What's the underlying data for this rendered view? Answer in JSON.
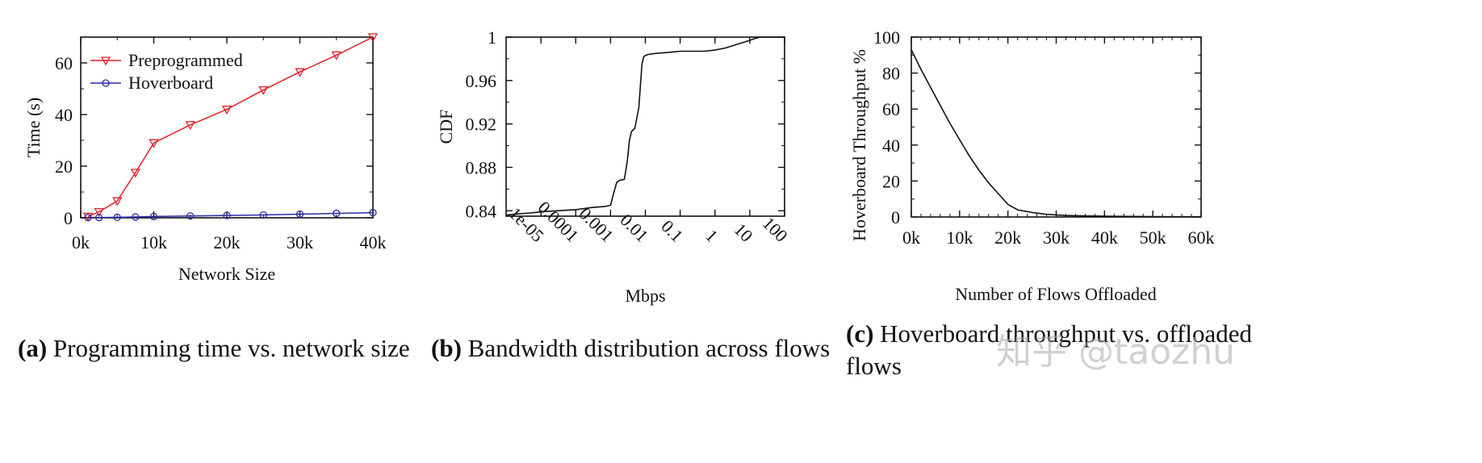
{
  "chart_data": [
    {
      "id": "a",
      "type": "line",
      "xlabel": "Network Size",
      "ylabel": "Time (s)",
      "xlim": [
        0,
        40000
      ],
      "ylim": [
        0,
        70
      ],
      "xticks": [
        0,
        10000,
        20000,
        30000,
        40000
      ],
      "xtick_labels": [
        "0k",
        "10k",
        "20k",
        "30k",
        "40k"
      ],
      "yticks": [
        0,
        20,
        40,
        60
      ],
      "ytick_labels": [
        "0",
        "20",
        "40",
        "60"
      ],
      "legend_position": "top-left",
      "series": [
        {
          "name": "Preprogrammed",
          "color": "#e0202a",
          "marker": "triangle-down",
          "x": [
            1000,
            2500,
            5000,
            7500,
            10000,
            15000,
            20000,
            25000,
            30000,
            35000,
            40000
          ],
          "y": [
            0.5,
            2.3,
            6.5,
            17.5,
            29,
            36,
            42,
            49.5,
            56.5,
            63,
            70
          ]
        },
        {
          "name": "Hoverboard",
          "color": "#2a2aa8",
          "marker": "circle",
          "x": [
            1000,
            2500,
            5000,
            7500,
            10000,
            15000,
            20000,
            25000,
            30000,
            35000,
            40000
          ],
          "y": [
            0.1,
            0.1,
            0.2,
            0.3,
            0.5,
            0.7,
            0.9,
            1.1,
            1.4,
            1.7,
            2.0
          ]
        }
      ]
    },
    {
      "id": "b",
      "type": "line",
      "xlabel": "Mbps",
      "ylabel": "CDF",
      "xscale": "log",
      "xlim": [
        1e-06,
        100
      ],
      "ylim": [
        0.835,
        1.0
      ],
      "xticks": [
        1e-05,
        0.0001,
        0.001,
        0.01,
        0.1,
        1,
        10,
        100
      ],
      "xtick_labels": [
        "1e-05",
        "0.0001",
        "0.001",
        "0.01",
        "0.1",
        "1",
        "10",
        "100"
      ],
      "yticks": [
        0.84,
        0.88,
        0.92,
        0.96,
        1.0
      ],
      "ytick_labels": [
        "0.84",
        "0.88",
        "0.92",
        "0.96",
        "1"
      ],
      "series": [
        {
          "color": "#111111",
          "x": [
            1e-06,
            2e-06,
            5e-06,
            1e-05,
            3e-05,
            0.0001,
            0.0003,
            0.0007,
            0.001,
            0.0012,
            0.0015,
            0.0018,
            0.0025,
            0.003,
            0.0035,
            0.004,
            0.005,
            0.0065,
            0.008,
            0.009,
            0.01,
            0.012,
            0.02,
            0.05,
            0.1,
            0.5,
            1,
            2,
            5,
            10,
            15,
            20,
            30,
            100
          ],
          "y": [
            0.836,
            0.837,
            0.838,
            0.839,
            0.84,
            0.841,
            0.843,
            0.844,
            0.845,
            0.855,
            0.866,
            0.868,
            0.869,
            0.885,
            0.905,
            0.913,
            0.916,
            0.935,
            0.975,
            0.982,
            0.983,
            0.984,
            0.985,
            0.986,
            0.987,
            0.987,
            0.988,
            0.99,
            0.994,
            0.997,
            0.999,
            1.0,
            1.0,
            1.0
          ]
        }
      ]
    },
    {
      "id": "c",
      "type": "line",
      "xlabel": "Number of Flows Offloaded",
      "ylabel": "Hoverboard Throughput %",
      "xlim": [
        0,
        60000
      ],
      "ylim": [
        0,
        100
      ],
      "xticks": [
        0,
        10000,
        20000,
        30000,
        40000,
        50000,
        60000
      ],
      "xtick_labels": [
        "0k",
        "10k",
        "20k",
        "30k",
        "40k",
        "50k",
        "60k"
      ],
      "yticks": [
        0,
        20,
        40,
        60,
        80,
        100
      ],
      "ytick_labels": [
        "0",
        "20",
        "40",
        "60",
        "80",
        "100"
      ],
      "series": [
        {
          "color": "#111111",
          "x": [
            0,
            2000,
            4000,
            6000,
            8000,
            10000,
            12000,
            14000,
            16000,
            18000,
            20000,
            22000,
            25000,
            28000,
            32000,
            40000,
            50000,
            60000
          ],
          "y": [
            93,
            82,
            72,
            62,
            52,
            43,
            34,
            26,
            19,
            13,
            7,
            4,
            2.5,
            1.5,
            0.8,
            0.4,
            0.2,
            0.1
          ]
        }
      ]
    }
  ],
  "captions": {
    "a": {
      "label": "(a)",
      "text": "Programming time vs. network size"
    },
    "b": {
      "label": "(b)",
      "text": "Bandwidth distribution across flows"
    },
    "c": {
      "label": "(c)",
      "text": "Hoverboard throughput vs. offloaded",
      "text_line2": "flows"
    }
  },
  "watermark": "知乎 @taozhu"
}
